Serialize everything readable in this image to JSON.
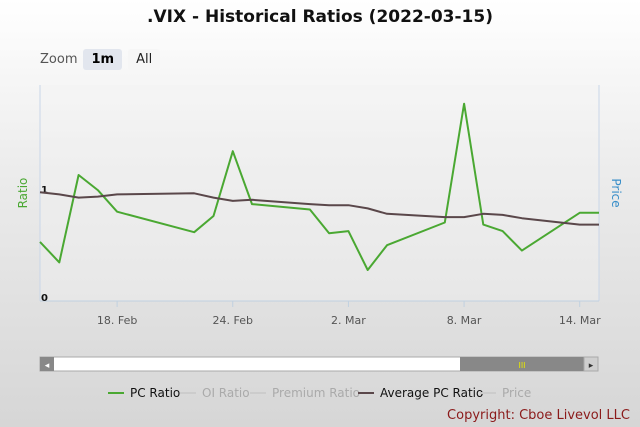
{
  "chart_data": {
    "type": "line",
    "title": ".VIX - Historical Ratios (2022-03-15)",
    "xlabel": "",
    "ylabel": "Ratio",
    "y2label": "Price",
    "ylim": [
      0,
      1
    ],
    "yticks": [
      "0",
      "1"
    ],
    "xticks": [
      "18. Feb",
      "24. Feb",
      "2. Mar",
      "8. Mar",
      "14. Mar"
    ],
    "grid": false,
    "legend_position": "bottom",
    "x": [
      "2022-02-14",
      "2022-02-15",
      "2022-02-16",
      "2022-02-17",
      "2022-02-18",
      "2022-02-22",
      "2022-02-23",
      "2022-02-24",
      "2022-02-25",
      "2022-02-28",
      "2022-03-01",
      "2022-03-02",
      "2022-03-03",
      "2022-03-04",
      "2022-03-07",
      "2022-03-08",
      "2022-03-09",
      "2022-03-10",
      "2022-03-11",
      "2022-03-14",
      "2022-03-15"
    ],
    "series": [
      {
        "name": "PC Ratio",
        "color": "#4aa832",
        "values": [
          0.51,
          0.32,
          1.13,
          0.99,
          0.79,
          0.6,
          0.75,
          1.35,
          0.86,
          0.81,
          0.59,
          0.61,
          0.25,
          0.48,
          0.69,
          1.79,
          0.67,
          0.61,
          0.43,
          0.78,
          0.78
        ]
      },
      {
        "name": "Average PC Ratio",
        "color": "#5a474a",
        "values": [
          0.97,
          0.95,
          0.92,
          0.93,
          0.95,
          0.96,
          0.92,
          0.89,
          0.9,
          0.86,
          0.85,
          0.85,
          0.82,
          0.77,
          0.74,
          0.74,
          0.77,
          0.76,
          0.73,
          0.67,
          0.67
        ]
      }
    ]
  },
  "zoom": {
    "label": "Zoom",
    "buttons": [
      "1m",
      "All"
    ],
    "active": "1m"
  },
  "legend": [
    {
      "label": "PC Ratio",
      "color": "#4aa832",
      "active": true
    },
    {
      "label": "OI Ratio",
      "color": "#cccccc",
      "active": false
    },
    {
      "label": "Premium Ratio",
      "color": "#cccccc",
      "active": false
    },
    {
      "label": "Average PC Ratio",
      "color": "#5a474a",
      "active": true
    },
    {
      "label": "Price",
      "color": "#cccccc",
      "active": false
    }
  ],
  "navigator": {
    "handle_glyph": "III",
    "left_arrow": "◂",
    "right_arrow": "▸"
  },
  "copyright": "Copyright: Cboe Livevol LLC",
  "colors": {
    "ratio_axis": "#4aa832",
    "price_axis": "#3a8fc9",
    "copyright": "#8b1a1a"
  }
}
